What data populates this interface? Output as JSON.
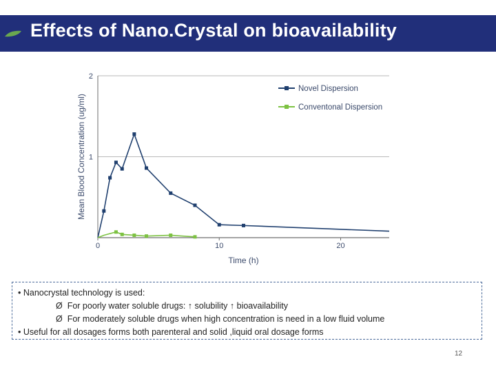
{
  "slide": {
    "title": "Effects of Nano.Crystal on bioavailability",
    "page_number": "12",
    "colors": {
      "title_bar": "#212f7a",
      "leaf": "#6aa84f"
    }
  },
  "bullets": {
    "items": [
      {
        "marker": "•",
        "text": "Nanocrystal technology is used:"
      },
      {
        "marker": "Ø",
        "text": "For poorly water soluble drugs:  ↑ solubility ↑ bioavailability",
        "indent": true
      },
      {
        "marker": "Ø",
        "text": "For  moderately soluble drugs when high concentration is need in a low fluid volume",
        "indent": true
      },
      {
        "marker": "•",
        "text": "Useful for all dosages forms  both parenteral and solid ,liquid oral dosage forms"
      }
    ]
  },
  "chart_data": {
    "type": "line",
    "title": "",
    "xlabel": "Time (h)",
    "ylabel": "Mean Blood Concentration  (ug/ml)",
    "xlim": [
      0,
      24
    ],
    "ylim": [
      0,
      2
    ],
    "x_ticks": [
      "0",
      "10",
      "20"
    ],
    "y_ticks": [
      "1",
      "2"
    ],
    "series": [
      {
        "name": "Novel Dispersion",
        "color": "#1f3f6e",
        "x": [
          0,
          0.5,
          1,
          1.5,
          2,
          3,
          4,
          6,
          8,
          10,
          12,
          24
        ],
        "y": [
          0,
          0.33,
          0.74,
          0.93,
          0.85,
          1.28,
          0.86,
          0.55,
          0.4,
          0.16,
          0.15,
          0.08
        ],
        "marked": [
          false,
          true,
          true,
          true,
          true,
          true,
          true,
          true,
          true,
          true,
          true,
          false
        ]
      },
      {
        "name": "Conventonal Dispersion",
        "color": "#7dc242",
        "x": [
          0,
          0.5,
          1.5,
          2,
          3,
          4,
          6,
          8
        ],
        "y": [
          0,
          0.03,
          0.07,
          0.04,
          0.03,
          0.02,
          0.03,
          0.01
        ],
        "marked": [
          false,
          false,
          true,
          true,
          true,
          true,
          true,
          true
        ]
      }
    ],
    "legend": "top-right",
    "grid": true
  }
}
